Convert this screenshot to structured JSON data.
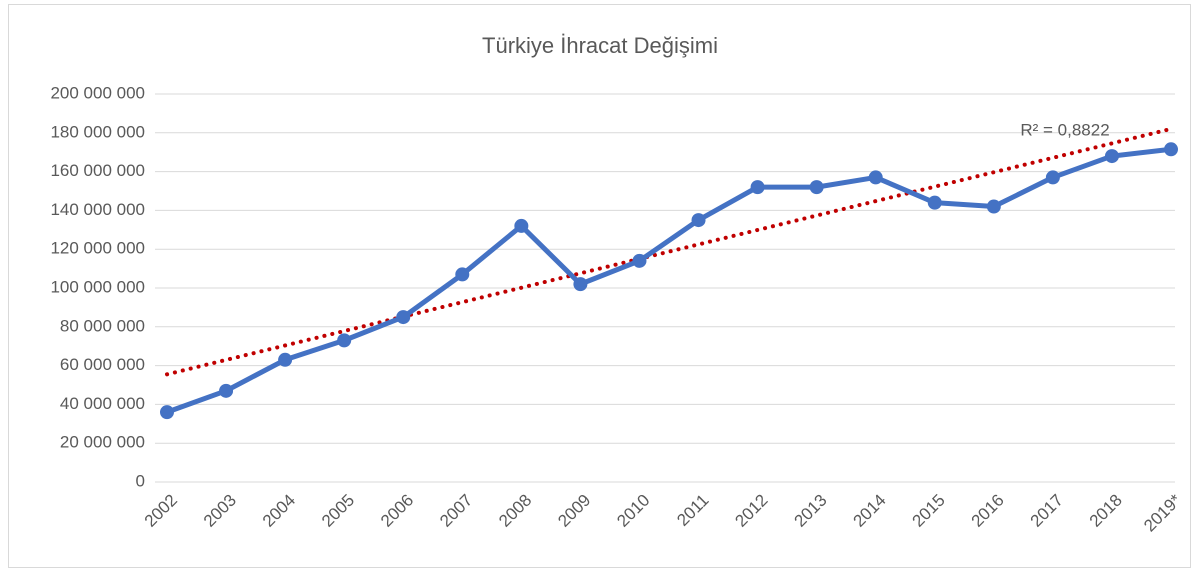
{
  "chart_data": {
    "type": "line",
    "title": "Türkiye İhracat Değişimi",
    "categories": [
      "2002",
      "2003",
      "2004",
      "2005",
      "2006",
      "2007",
      "2008",
      "2009",
      "2010",
      "2011",
      "2012",
      "2013",
      "2014",
      "2015",
      "2016",
      "2017",
      "2018",
      "2019*"
    ],
    "series": [
      {
        "color": "#4472c4",
        "values": [
          36000000,
          47000000,
          63000000,
          73000000,
          85000000,
          107000000,
          132000000,
          102000000,
          114000000,
          135000000,
          152000000,
          152000000,
          157000000,
          144000000,
          142000000,
          157000000,
          168000000,
          171500000
        ]
      }
    ],
    "trendline": {
      "color": "#c00000",
      "values": [
        55500000,
        182000000
      ]
    },
    "annotation": "R² = 0,8822",
    "ylim": [
      0,
      200000000
    ],
    "yticks": [
      0,
      {
        "value": 20000000,
        "label": "20 000 000"
      },
      {
        "value": 40000000,
        "label": "40 000 000"
      },
      {
        "value": 60000000,
        "label": "60 000 000"
      },
      {
        "value": 80000000,
        "label": "80 000 000"
      },
      {
        "value": 100000000,
        "label": "100 000 000"
      },
      {
        "value": 120000000,
        "label": "120 000 000"
      },
      {
        "value": 140000000,
        "label": "140 000 000"
      },
      {
        "value": 160000000,
        "label": "160 000 000"
      },
      {
        "value": 180000000,
        "label": "180 000 000"
      },
      {
        "value": 200000000,
        "label": "200 000 000"
      }
    ],
    "grid": true
  }
}
